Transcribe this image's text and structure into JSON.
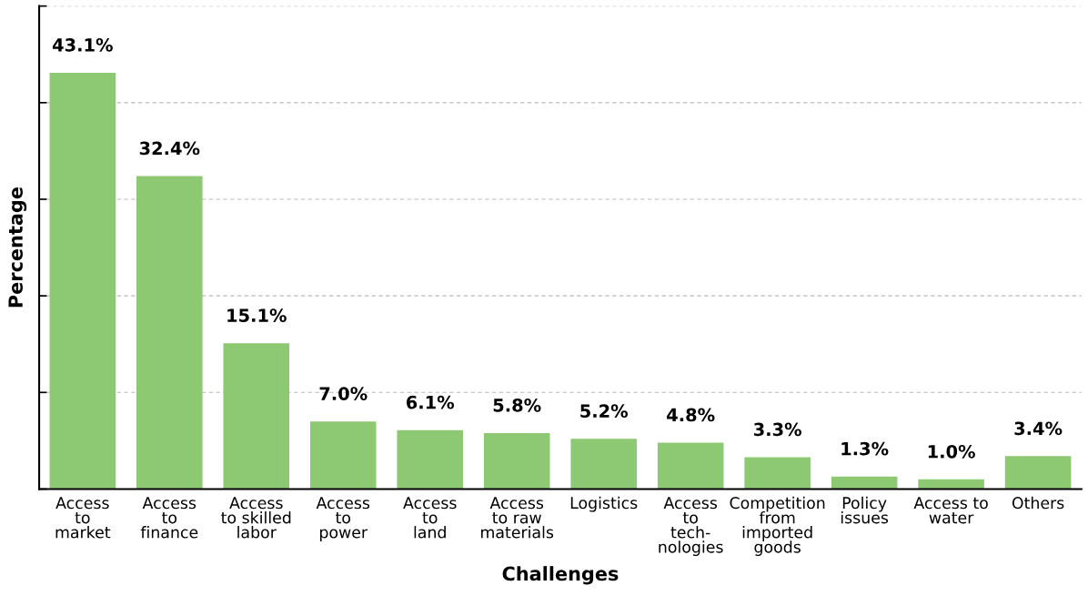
{
  "chart_data": {
    "type": "bar",
    "xlabel": "Challenges",
    "ylabel": "Percentage",
    "categories": [
      "Access\nto\nmarket",
      "Access\nto\nfinance",
      "Access\nto skilled\nlabor",
      "Access\nto\npower",
      "Access\nto\nland",
      "Access\nto raw\nmaterials",
      "Logistics",
      "Access\nto\ntech-\nnologies",
      "Competition\nfrom\nimported\ngoods",
      "Policy\nissues",
      "Access to\nwater",
      "Others"
    ],
    "values": [
      43.1,
      32.4,
      15.1,
      7.0,
      6.1,
      5.8,
      5.2,
      4.8,
      3.3,
      1.3,
      1.0,
      3.4
    ],
    "value_labels": [
      "43.1%",
      "32.4%",
      "15.1%",
      "7.0%",
      "6.1%",
      "5.8%",
      "5.2%",
      "4.8%",
      "3.3%",
      "1.3%",
      "1.0%",
      "3.4%"
    ],
    "color": "#8dc972",
    "ylim": [
      0,
      50
    ],
    "yticks": [
      {
        "value": 0,
        "label": null
      },
      {
        "value": 10,
        "label": null
      },
      {
        "value": 20,
        "label": null
      },
      {
        "value": 30,
        "label": null
      },
      {
        "value": 40,
        "label": null
      },
      {
        "value": 50,
        "label": null
      }
    ],
    "grid": "y",
    "tick_labels": "x"
  }
}
